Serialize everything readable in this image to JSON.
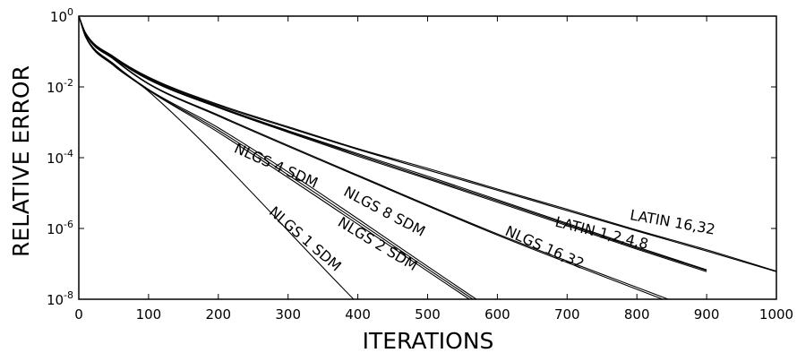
{
  "chart_data": {
    "type": "line",
    "xlabel": "ITERATIONS",
    "ylabel": "RELATIVE ERROR",
    "xlim": [
      0,
      1000
    ],
    "ylim": [
      1e-08,
      1
    ],
    "y_scale": "log",
    "x_ticks": [
      0,
      100,
      200,
      300,
      400,
      500,
      600,
      700,
      800,
      900,
      1000
    ],
    "y_ticks": [
      {
        "value": 1,
        "base": "10",
        "exp": "0"
      },
      {
        "value": 0.01,
        "base": "10",
        "exp": "-2"
      },
      {
        "value": 0.0001,
        "base": "10",
        "exp": "-4"
      },
      {
        "value": 1e-06,
        "base": "10",
        "exp": "-6"
      },
      {
        "value": 1e-08,
        "base": "10",
        "exp": "-8"
      }
    ],
    "grid": false,
    "series": [
      {
        "points": [
          [
            0,
            1
          ],
          [
            10,
            0.25
          ],
          [
            50,
            0.04
          ],
          [
            100,
            0.0075
          ],
          [
            394,
            1e-08
          ]
        ]
      },
      {
        "points": [
          [
            0,
            1
          ],
          [
            10,
            0.26
          ],
          [
            50,
            0.042
          ],
          [
            100,
            0.008
          ],
          [
            200,
            0.00052
          ],
          [
            560,
            1e-08
          ]
        ]
      },
      {
        "points": [
          [
            0,
            1
          ],
          [
            10,
            0.26
          ],
          [
            50,
            0.043
          ],
          [
            100,
            0.0082
          ],
          [
            200,
            0.0006
          ],
          [
            565,
            1e-08
          ]
        ]
      },
      {
        "points": [
          [
            0,
            1
          ],
          [
            10,
            0.27
          ],
          [
            50,
            0.045
          ],
          [
            100,
            0.0085
          ],
          [
            200,
            0.0007
          ],
          [
            570,
            1e-08
          ]
        ]
      },
      {
        "points": [
          [
            0,
            1
          ],
          [
            10,
            0.3
          ],
          [
            50,
            0.06
          ],
          [
            100,
            0.012
          ],
          [
            200,
            0.0015
          ],
          [
            400,
            3e-05
          ],
          [
            600,
            6.5e-07
          ],
          [
            837,
            1e-08
          ]
        ]
      },
      {
        "points": [
          [
            0,
            1
          ],
          [
            10,
            0.3
          ],
          [
            50,
            0.062
          ],
          [
            100,
            0.0125
          ],
          [
            200,
            0.0016
          ],
          [
            400,
            3.2e-05
          ],
          [
            600,
            7e-07
          ],
          [
            845,
            1e-08
          ]
        ]
      },
      {
        "points": [
          [
            0,
            1
          ],
          [
            10,
            0.31
          ],
          [
            50,
            0.065
          ],
          [
            100,
            0.016
          ],
          [
            200,
            0.0026
          ],
          [
            300,
            0.00052
          ],
          [
            400,
            0.00011
          ],
          [
            500,
            2.5e-05
          ],
          [
            600,
            5.5e-06
          ],
          [
            700,
            1.2e-06
          ],
          [
            800,
            2.6e-07
          ],
          [
            900,
            6e-08
          ]
        ]
      },
      {
        "points": [
          [
            0,
            1
          ],
          [
            10,
            0.31
          ],
          [
            50,
            0.066
          ],
          [
            100,
            0.0165
          ],
          [
            200,
            0.0027
          ],
          [
            300,
            0.00055
          ],
          [
            400,
            0.00012
          ],
          [
            500,
            2.7e-05
          ],
          [
            600,
            6e-06
          ],
          [
            700,
            1.3e-06
          ],
          [
            800,
            2.8e-07
          ],
          [
            900,
            6.5e-08
          ]
        ]
      },
      {
        "points": [
          [
            0,
            1
          ],
          [
            10,
            0.32
          ],
          [
            50,
            0.068
          ],
          [
            100,
            0.017
          ],
          [
            200,
            0.0028
          ],
          [
            300,
            0.00058
          ],
          [
            400,
            0.00013
          ],
          [
            500,
            3e-05
          ],
          [
            600,
            6.5e-06
          ],
          [
            700,
            1.4e-06
          ],
          [
            800,
            3e-07
          ],
          [
            900,
            6.8e-08
          ]
        ]
      },
      {
        "points": [
          [
            0,
            1
          ],
          [
            10,
            0.32
          ],
          [
            50,
            0.07
          ],
          [
            100,
            0.018
          ],
          [
            200,
            0.003
          ],
          [
            300,
            0.0007
          ],
          [
            400,
            0.00017
          ],
          [
            500,
            4.5e-05
          ],
          [
            600,
            1.2e-05
          ],
          [
            700,
            3.2e-06
          ],
          [
            800,
            8.5e-07
          ],
          [
            900,
            2.3e-07
          ],
          [
            1000,
            6e-08
          ]
        ]
      },
      {
        "points": [
          [
            0,
            1
          ],
          [
            10,
            0.33
          ],
          [
            50,
            0.072
          ],
          [
            100,
            0.019
          ],
          [
            200,
            0.0032
          ],
          [
            300,
            0.00075
          ],
          [
            400,
            0.00018
          ],
          [
            500,
            5e-05
          ],
          [
            600,
            1.3e-05
          ],
          [
            700,
            3.5e-06
          ],
          [
            800,
            9e-07
          ],
          [
            900,
            2.5e-07
          ],
          [
            1000,
            6.2e-08
          ]
        ]
      }
    ],
    "annotations": [
      {
        "text": "NLGS 1 SDM",
        "x": 320,
        "y": 4e-07
      },
      {
        "text": "NLGS 2 SDM",
        "x": 425,
        "y": 2.8e-07
      },
      {
        "text": "NLGS 4 SDM",
        "x": 280,
        "y": 4.5e-05
      },
      {
        "text": "NLGS 8 SDM",
        "x": 435,
        "y": 2.3e-06
      },
      {
        "text": "NLGS 16,32",
        "x": 665,
        "y": 2.2e-07
      },
      {
        "text": "LATIN 1,2,4,8",
        "x": 748,
        "y": 5.5e-07
      },
      {
        "text": "LATIN 16,32",
        "x": 850,
        "y": 1.1e-06
      }
    ]
  }
}
